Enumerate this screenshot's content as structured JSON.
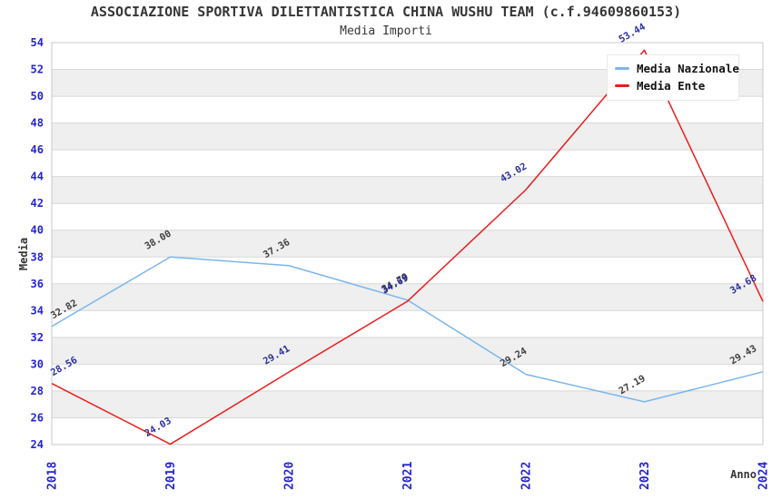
{
  "header": {
    "title": "ASSOCIAZIONE SPORTIVA DILETTANTISTICA CHINA WUSHU TEAM (c.f.94609860153)",
    "subtitle": "Media Importi"
  },
  "chart_data": {
    "type": "line",
    "title": "ASSOCIAZIONE SPORTIVA DILETTANTISTICA CHINA WUSHU TEAM (c.f.94609860153)",
    "subtitle": "Media Importi",
    "xlabel": "Anno",
    "ylabel": "Media",
    "categories": [
      "2018",
      "2019",
      "2020",
      "2021",
      "2022",
      "2023",
      "2024"
    ],
    "y_ticks": [
      24,
      26,
      28,
      30,
      32,
      34,
      36,
      38,
      40,
      42,
      44,
      46,
      48,
      50,
      52,
      54
    ],
    "ylim": [
      24,
      54
    ],
    "grid": true,
    "banded_background": true,
    "legend_position": "top-right",
    "series": [
      {
        "name": "Media Nazionale",
        "color": "#7cb5ec",
        "label_color": "#3f3f3f",
        "values": [
          32.82,
          38.0,
          37.36,
          34.79,
          29.24,
          27.19,
          29.43
        ],
        "labels": [
          "32.82",
          "38.00",
          "37.36",
          "34.79",
          "29.24",
          "27.19",
          "29.43"
        ]
      },
      {
        "name": "Media Ente",
        "color": "#ec1c1c",
        "label_color": "#2b2f9e",
        "values": [
          28.56,
          24.03,
          29.41,
          34.69,
          43.02,
          53.44,
          34.68
        ],
        "labels": [
          "28.56",
          "24.03",
          "29.41",
          "34.69",
          "43.02",
          "53.44",
          "34.68"
        ]
      }
    ],
    "style": {
      "band_color": "#efefef",
      "grid_color": "#d8d8d8",
      "plot_border_color": "#c8c8c8",
      "tick_label_color": "#2525cd",
      "text_color": "#363636"
    }
  }
}
